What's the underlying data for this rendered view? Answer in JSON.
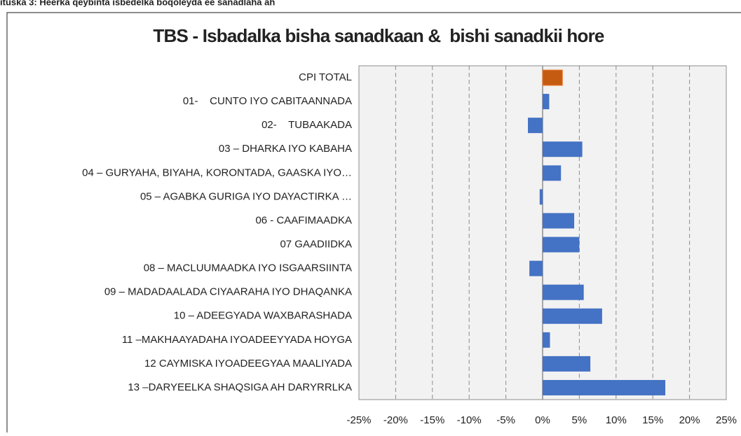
{
  "chart_data": {
    "type": "bar",
    "orientation": "horizontal",
    "caption": "ituska 3: Heerka qeybinta isbedelka boqoleyda ee sanadlaha ah",
    "title": "TBS - Isbadalka bisha sanadkaan &  bishi sanadkii hore",
    "categories": [
      "CPI TOTAL",
      "01-    CUNTO IYO CABITAANNADA",
      "02-    TUBAAKADA",
      "03 – DHARKA IYO KABAHA",
      "04 – GURYAHA, BIYAHA, KORONTADA, GAASKA IYO…",
      "05 – AGABKA GURIGA IYO DAYACTIRKA …",
      "06 - CAAFIMAADKA",
      "07 GAADIIDKA",
      "08 – MACLUUMAADKA IYO ISGAARSIINTA",
      "09 – MADADAALADA CIYAARAHA IYO DHAQANKA",
      "10 – ADEEGYADA WAXBARASHADA",
      "11 –MAKHAAYADAHA IYOADEEYYADA HOYGA",
      "12 CAYMISKA IYOADEEGYAA MAALIYADA",
      "13 –DARYEELKA SHAQSIGA AH DARYRRLKA"
    ],
    "values": [
      2.7,
      0.9,
      -2.0,
      5.4,
      2.5,
      -0.4,
      4.3,
      5.0,
      -1.8,
      5.6,
      8.1,
      1.0,
      6.5,
      16.7
    ],
    "colors": [
      "#c55a11",
      "#4472c4",
      "#4472c4",
      "#4472c4",
      "#4472c4",
      "#4472c4",
      "#4472c4",
      "#4472c4",
      "#4472c4",
      "#4472c4",
      "#4472c4",
      "#4472c4",
      "#4472c4",
      "#4472c4"
    ],
    "xlim": [
      -25,
      25
    ],
    "xticks": [
      {
        "value": -25,
        "label": "-25%"
      },
      {
        "value": -20,
        "label": "-20%"
      },
      {
        "value": -15,
        "label": "-15%"
      },
      {
        "value": -10,
        "label": "-10%"
      },
      {
        "value": -5,
        "label": "-5%"
      },
      {
        "value": 0,
        "label": "0%"
      },
      {
        "value": 5,
        "label": "5%"
      },
      {
        "value": 10,
        "label": "10%"
      },
      {
        "value": 15,
        "label": "15%"
      },
      {
        "value": 20,
        "label": "20%"
      },
      {
        "value": 25,
        "label": "25%"
      }
    ],
    "grid": true
  }
}
